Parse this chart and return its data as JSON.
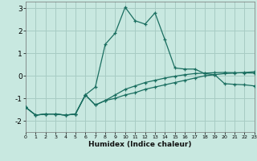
{
  "xlabel": "Humidex (Indice chaleur)",
  "background_color": "#c8e8e0",
  "grid_color": "#a8ccc4",
  "line_color": "#1a6e60",
  "x_values": [
    0,
    1,
    2,
    3,
    4,
    5,
    6,
    7,
    8,
    9,
    10,
    11,
    12,
    13,
    14,
    15,
    16,
    17,
    18,
    19,
    20,
    21,
    22,
    23
  ],
  "series1": [
    -1.4,
    -1.75,
    -1.7,
    -1.7,
    -1.75,
    -1.7,
    -0.85,
    -0.5,
    1.4,
    1.9,
    3.05,
    2.45,
    2.3,
    2.8,
    1.6,
    0.35,
    0.3,
    0.3,
    0.1,
    0.05,
    -0.35,
    -0.38,
    -0.4,
    -0.45
  ],
  "series2": [
    -1.4,
    -1.75,
    -1.7,
    -1.7,
    -1.75,
    -1.7,
    -0.85,
    -1.3,
    -1.1,
    -1.0,
    -0.85,
    -0.75,
    -0.6,
    -0.5,
    -0.4,
    -0.3,
    -0.2,
    -0.1,
    0.0,
    0.05,
    0.1,
    0.12,
    0.15,
    0.18
  ],
  "series3": [
    -1.4,
    -1.75,
    -1.7,
    -1.7,
    -1.75,
    -1.7,
    -0.85,
    -1.3,
    -1.1,
    -0.85,
    -0.6,
    -0.45,
    -0.3,
    -0.2,
    -0.1,
    -0.02,
    0.05,
    0.1,
    0.12,
    0.14,
    0.15,
    0.14,
    0.13,
    0.12
  ],
  "ylim": [
    -2.5,
    3.3
  ],
  "yticks": [
    -2,
    -1,
    0,
    1,
    2,
    3
  ],
  "xlim": [
    0,
    23
  ],
  "xticks": [
    0,
    1,
    2,
    3,
    4,
    5,
    6,
    7,
    8,
    9,
    10,
    11,
    12,
    13,
    14,
    15,
    16,
    17,
    18,
    19,
    20,
    21,
    22,
    23
  ]
}
